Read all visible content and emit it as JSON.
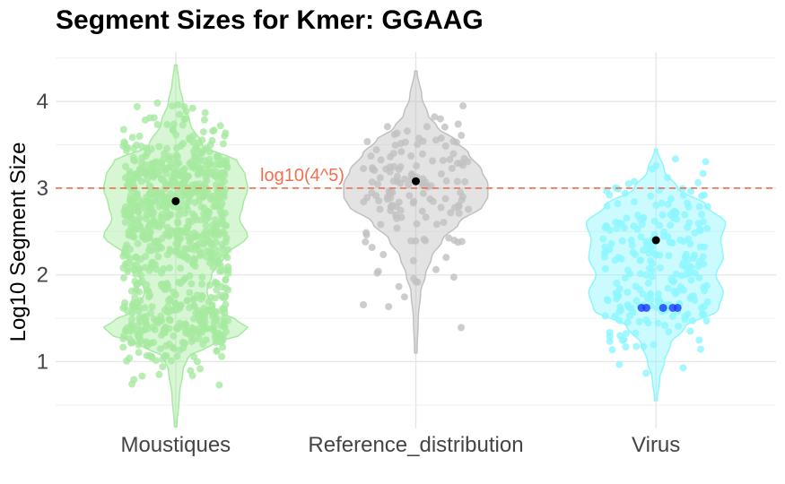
{
  "chart_data": {
    "type": "violin",
    "title": "Segment Sizes for Kmer: GGAAG",
    "xlabel": "",
    "ylabel": "Log10 Segment Size",
    "ylim": [
      0.23,
      4.57
    ],
    "yticks": [
      1,
      2,
      3,
      4
    ],
    "grid": true,
    "legend": "none",
    "categories": [
      "Moustiques",
      "Reference_distribution",
      "Virus"
    ],
    "groups": [
      {
        "name": "Moustiques",
        "color": "#a6eaa0",
        "y_min": 0.25,
        "y_max": 4.42,
        "mean": 2.85,
        "density": [
          [
            0.25,
            0.01
          ],
          [
            0.6,
            0.03
          ],
          [
            0.9,
            0.06
          ],
          [
            1.05,
            0.1
          ],
          [
            1.2,
            0.3
          ],
          [
            1.32,
            0.55
          ],
          [
            1.4,
            0.6
          ],
          [
            1.48,
            0.5
          ],
          [
            1.6,
            0.33
          ],
          [
            1.8,
            0.26
          ],
          [
            2.0,
            0.3
          ],
          [
            2.2,
            0.4
          ],
          [
            2.45,
            0.6
          ],
          [
            2.65,
            0.53
          ],
          [
            2.8,
            0.56
          ],
          [
            3.0,
            0.6
          ],
          [
            3.15,
            0.58
          ],
          [
            3.3,
            0.52
          ],
          [
            3.5,
            0.22
          ],
          [
            3.75,
            0.12
          ],
          [
            4.0,
            0.06
          ],
          [
            4.2,
            0.03
          ],
          [
            4.42,
            0.01
          ]
        ]
      },
      {
        "name": "Reference_distribution",
        "color": "#c0c0c0",
        "y_min": 1.1,
        "y_max": 4.35,
        "mean": 3.08,
        "density": [
          [
            1.1,
            0.01
          ],
          [
            1.5,
            0.02
          ],
          [
            1.8,
            0.04
          ],
          [
            2.0,
            0.08
          ],
          [
            2.2,
            0.13
          ],
          [
            2.4,
            0.22
          ],
          [
            2.6,
            0.36
          ],
          [
            2.8,
            0.56
          ],
          [
            2.9,
            0.6
          ],
          [
            3.05,
            0.6
          ],
          [
            3.2,
            0.55
          ],
          [
            3.4,
            0.44
          ],
          [
            3.55,
            0.33
          ],
          [
            3.7,
            0.18
          ],
          [
            3.85,
            0.1
          ],
          [
            4.05,
            0.05
          ],
          [
            4.35,
            0.01
          ]
        ]
      },
      {
        "name": "Virus",
        "color": "#8cf6ff",
        "y_min": 0.55,
        "y_max": 3.45,
        "mean": 2.4,
        "density": [
          [
            0.55,
            0.01
          ],
          [
            0.8,
            0.03
          ],
          [
            1.0,
            0.07
          ],
          [
            1.2,
            0.12
          ],
          [
            1.4,
            0.24
          ],
          [
            1.6,
            0.52
          ],
          [
            1.8,
            0.56
          ],
          [
            2.0,
            0.5
          ],
          [
            2.2,
            0.56
          ],
          [
            2.4,
            0.54
          ],
          [
            2.6,
            0.58
          ],
          [
            2.8,
            0.42
          ],
          [
            3.0,
            0.18
          ],
          [
            3.2,
            0.07
          ],
          [
            3.45,
            0.01
          ]
        ]
      }
    ],
    "highlight_points": {
      "category": "Virus",
      "color": "#1a3cff",
      "points": [
        [
          -0.06,
          1.62
        ],
        [
          -0.04,
          1.62
        ],
        [
          0.03,
          1.62
        ],
        [
          0.07,
          1.62
        ],
        [
          0.09,
          1.62
        ]
      ]
    },
    "reference_line": {
      "y": 3.0,
      "label": "log10(4^5)",
      "color": "#f07050"
    }
  }
}
